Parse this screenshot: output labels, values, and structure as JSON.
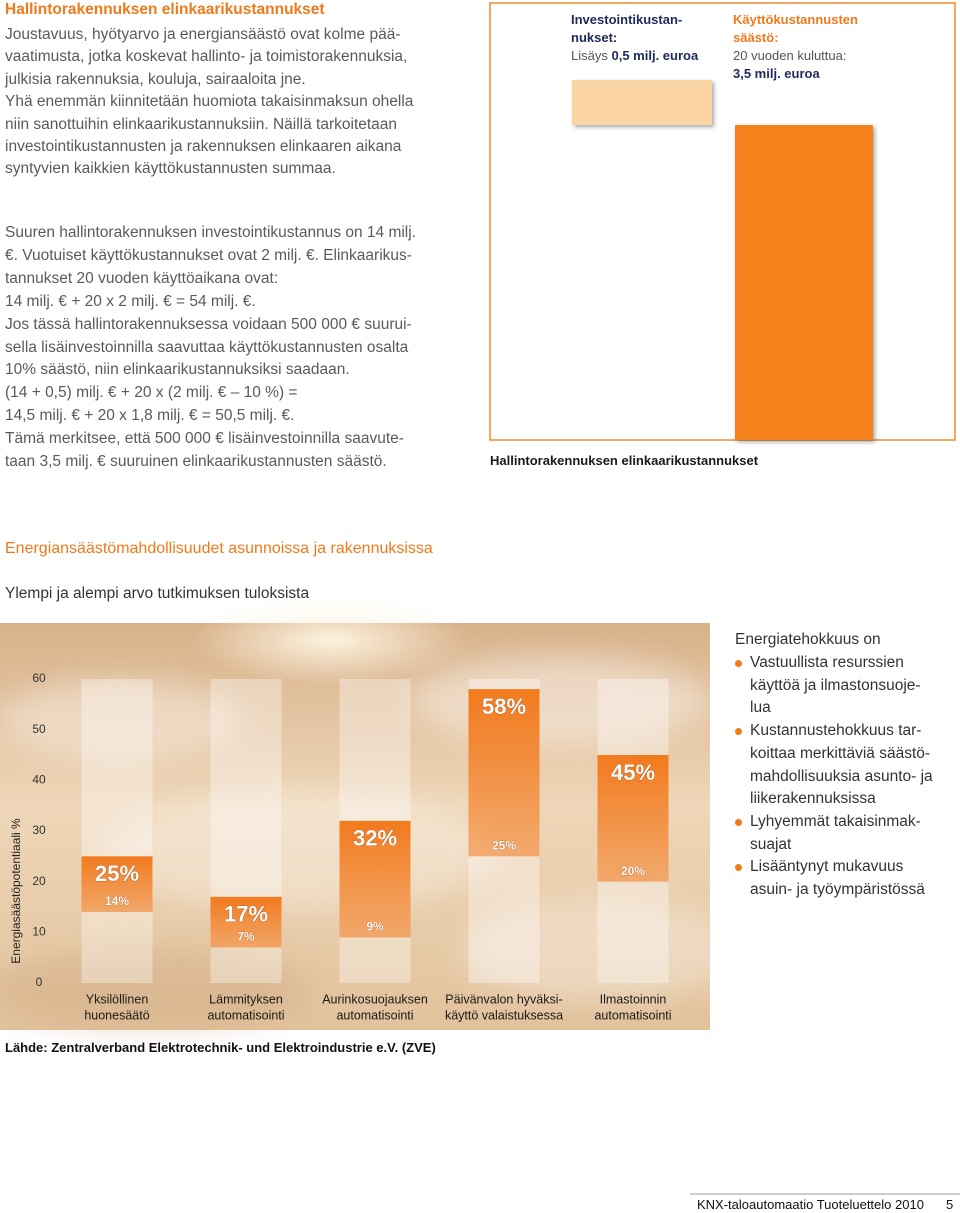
{
  "intro": {
    "title": "Hallintorakennuksen elinkaarikustannukset",
    "lines": [
      "Joustavuus, hyötyarvo ja energiansäästö ovat kolme pää-",
      "vaatimusta, jotka koskevat hallinto- ja toimistorakennuksia,",
      "julkisia rakennuksia, kouluja, sairaaloita jne.",
      "Yhä enemmän kiinnitetään huomiota takaisinmaksun ohella",
      "niin sanottuihin elinkaarikustannuksiin. Näillä tarkoitetaan",
      "investointikustannusten ja rakennuksen elinkaaren aikana",
      "syntyvien kaikkien käyttökustannusten summaa."
    ]
  },
  "calculation": {
    "lines": [
      "Suuren hallintorakennuksen investointikustannus on 14 milj.",
      "€. Vuotuiset käyttökustannukset ovat 2 milj. €. Elinkaarikus-",
      "tannukset 20 vuoden käyttöaikana ovat:",
      "14 milj. € + 20 x 2 milj. € = 54 milj. €.",
      "Jos tässä hallintorakennuksessa voidaan 500 000 € suurui-",
      "sella lisäinvestoinnilla saavuttaa käyttökustannusten osalta",
      "10% säästö, niin elinkaarikustannuksiksi saadaan.",
      "(14 + 0,5) milj. € + 20 x (2 milj. € – 10 %) =",
      "14,5 milj. € + 20 x 1,8 milj. € = 50,5 milj. €.",
      "Tämä merkitsee, että 500 000 € lisäinvestoinnilla saavute-",
      "taan 3,5 milj. € suuruinen elinkaarikustannusten säästö."
    ]
  },
  "section": {
    "title": "Energiansäästömahdollisuudet asunnoissa ja rakennuksissa",
    "subtitle": "Ylempi ja alempi arvo tutkimuksen tuloksista"
  },
  "chart_data": [
    {
      "type": "bar",
      "title": "Hallintorakennuksen elinkaarikustannukset",
      "categories": [
        "Investointikustan­nukset:",
        "Käyttökustannusten säästö:"
      ],
      "notes": [
        "Lisäys",
        "20 vuoden kuluttua:"
      ],
      "values": [
        0.5,
        3.5
      ],
      "value_labels": [
        "0,5 milj. euroa",
        "3,5 milj. euroa"
      ],
      "colors": [
        "#fbd6a4",
        "#f5821f"
      ],
      "label_colors": [
        "#1d2a5c",
        "#f07a1a"
      ]
    },
    {
      "type": "range_bar",
      "ylabel": "Energiasäästöpotentiaali %",
      "categories": [
        [
          "Yksilöllinen",
          "huonesäätö"
        ],
        [
          "Lämmityksen",
          "automatisointi"
        ],
        [
          "Aurinkosuojauksen",
          "automatisointi"
        ],
        [
          "Päivänvalon hyväksi-",
          "käyttö valaistuksessa"
        ],
        [
          "Ilmastoinnin",
          "automatisointi"
        ]
      ],
      "series": [
        {
          "values": [
            25,
            17,
            32,
            58,
            45
          ],
          "value_labels": [
            "25%",
            "17%",
            "32%",
            "58%",
            "45%"
          ]
        },
        {
          "values": [
            14,
            7,
            9,
            25,
            20
          ],
          "value_labels": [
            "14%",
            "7%",
            "9%",
            "25%",
            "20%"
          ]
        }
      ],
      "color": "#f27a1d",
      "ylim": [
        0,
        60
      ],
      "yticks": [
        0,
        10,
        20,
        30,
        40,
        50,
        60
      ]
    }
  ],
  "benefits": {
    "title": "Energiatehokkuus on",
    "items": [
      [
        "Vastuullista resurssien",
        "käyttöä ja ilmastonsuoje-",
        "lua"
      ],
      [
        "Kustannustehokkuus tar-",
        "koittaa merkittäviä säästö-",
        "mahdollisuuksia asunto- ja",
        "liikerakennuksissa"
      ],
      [
        "Lyhyemmät takaisinmak-",
        "suajat"
      ],
      [
        "Lisääntynyt mukavuus",
        "asuin- ja työympäristössä"
      ]
    ]
  },
  "source": "Lähde: Zentralverband Elektrotechnik- und Elektroindustrie e.V. (ZVE)",
  "footer": {
    "publication": "KNX-taloautomaatio Tuoteluettelo 2010",
    "page": "5"
  }
}
